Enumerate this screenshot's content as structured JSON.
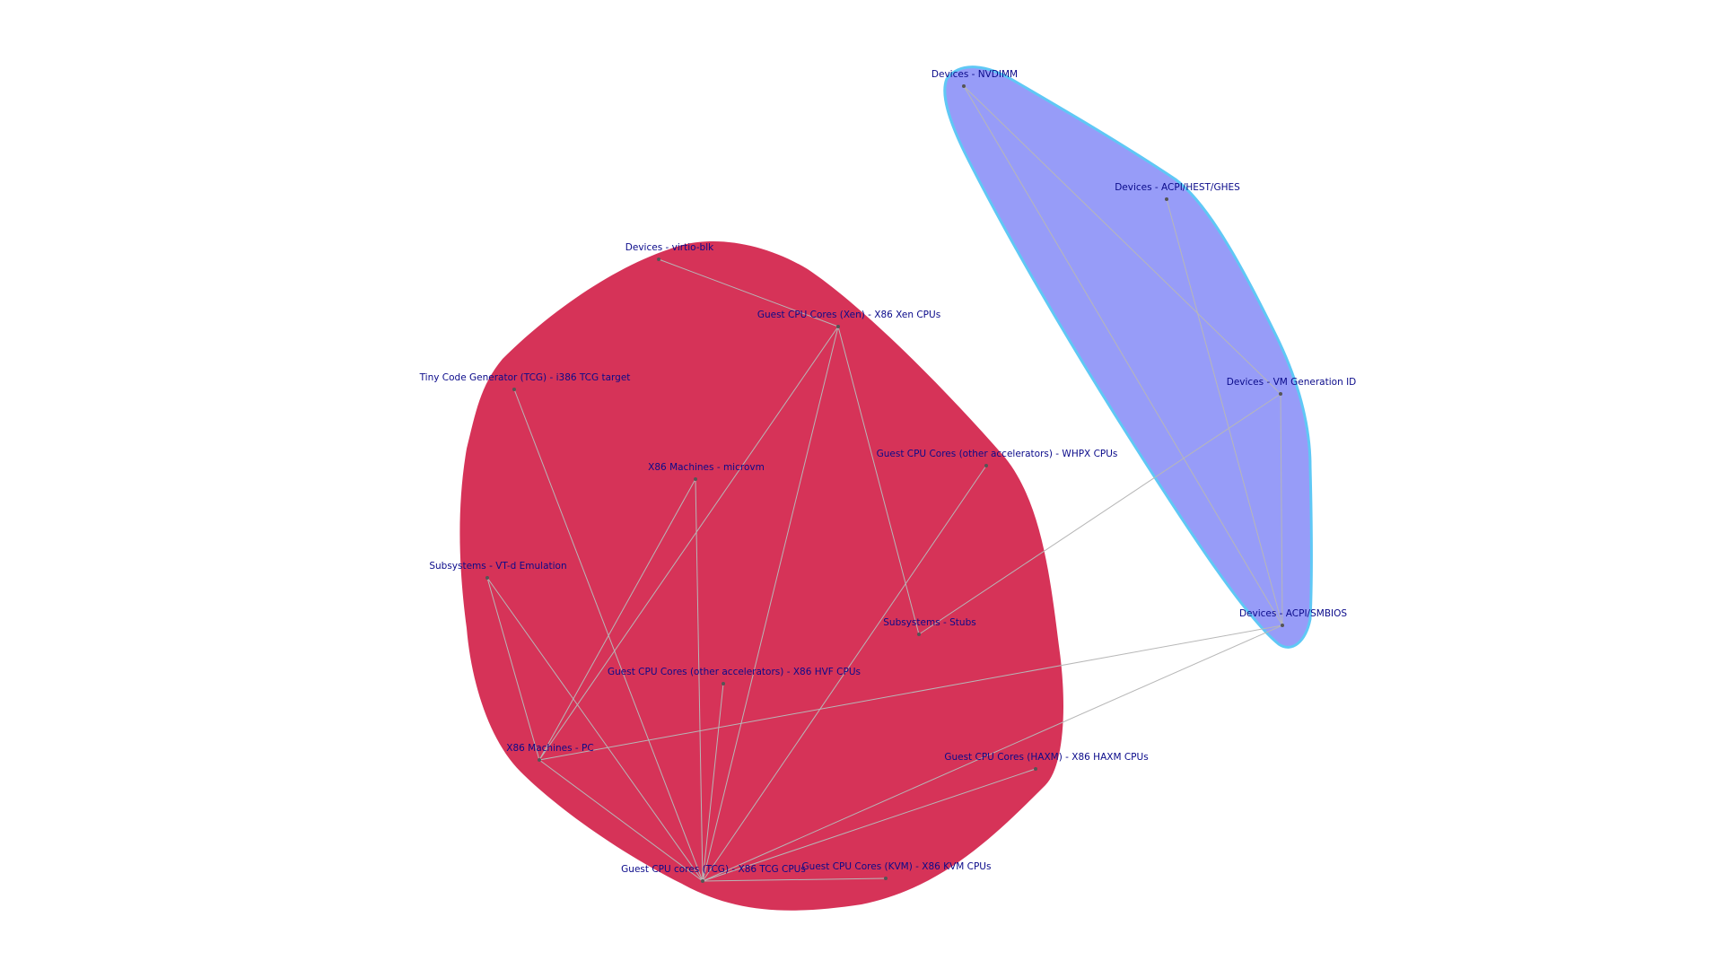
{
  "colors": {
    "group_red_fill": "#d63358",
    "group_blue_fill": "#979cf8",
    "group_blue_stroke": "#5fc8f5",
    "edge": "#b7b7b7",
    "label": "#0a0a8a",
    "node": "#555555"
  },
  "groups": [
    {
      "id": "group-red",
      "color": "#d63358"
    },
    {
      "id": "group-blue",
      "color": "#979cf8"
    }
  ],
  "nodes": [
    {
      "id": "virtio_blk",
      "label": "Devices - virtio-blk",
      "group": "group-red"
    },
    {
      "id": "xen",
      "label": "Guest CPU Cores (Xen) - X86 Xen CPUs",
      "group": "group-red"
    },
    {
      "id": "tcg_target",
      "label": "Tiny Code Generator (TCG) - i386 TCG target",
      "group": "group-red"
    },
    {
      "id": "microvm",
      "label": "X86 Machines - microvm",
      "group": "group-red"
    },
    {
      "id": "whpx",
      "label": "Guest CPU Cores (other accelerators) - WHPX CPUs",
      "group": "group-red"
    },
    {
      "id": "vtd",
      "label": "Subsystems - VT-d Emulation",
      "group": "group-red"
    },
    {
      "id": "stubs",
      "label": "Subsystems - Stubs",
      "group": "group-red"
    },
    {
      "id": "hvf",
      "label": "Guest CPU Cores (other accelerators) - X86 HVF CPUs",
      "group": "group-red"
    },
    {
      "id": "pc",
      "label": "X86 Machines - PC",
      "group": "group-red"
    },
    {
      "id": "haxm",
      "label": "Guest CPU Cores (HAXM) - X86 HAXM CPUs",
      "group": "group-red"
    },
    {
      "id": "tcg_cpus",
      "label": "Guest CPU cores (TCG) - X86 TCG CPUs",
      "group": "group-red"
    },
    {
      "id": "kvm",
      "label": "Guest CPU Cores (KVM) - X86 KVM CPUs",
      "group": "group-red"
    },
    {
      "id": "nvdimm",
      "label": "Devices - NVDIMM",
      "group": "group-blue"
    },
    {
      "id": "ghes",
      "label": "Devices - ACPI/HEST/GHES",
      "group": "group-blue"
    },
    {
      "id": "vmgenid",
      "label": "Devices - VM Generation ID",
      "group": "group-blue"
    },
    {
      "id": "smbios",
      "label": "Devices - ACPI/SMBIOS",
      "group": "group-blue"
    }
  ],
  "edges": [
    [
      "virtio_blk",
      "xen"
    ],
    [
      "xen",
      "pc"
    ],
    [
      "xen",
      "tcg_cpus"
    ],
    [
      "xen",
      "stubs"
    ],
    [
      "tcg_target",
      "tcg_cpus"
    ],
    [
      "microvm",
      "pc"
    ],
    [
      "microvm",
      "tcg_cpus"
    ],
    [
      "whpx",
      "tcg_cpus"
    ],
    [
      "vtd",
      "pc"
    ],
    [
      "vtd",
      "tcg_cpus"
    ],
    [
      "hvf",
      "tcg_cpus"
    ],
    [
      "pc",
      "tcg_cpus"
    ],
    [
      "pc",
      "smbios"
    ],
    [
      "tcg_cpus",
      "kvm"
    ],
    [
      "tcg_cpus",
      "haxm"
    ],
    [
      "tcg_cpus",
      "smbios"
    ],
    [
      "stubs",
      "vmgenid"
    ],
    [
      "nvdimm",
      "smbios"
    ],
    [
      "nvdimm",
      "vmgenid"
    ],
    [
      "ghes",
      "smbios"
    ],
    [
      "vmgenid",
      "smbios"
    ]
  ]
}
